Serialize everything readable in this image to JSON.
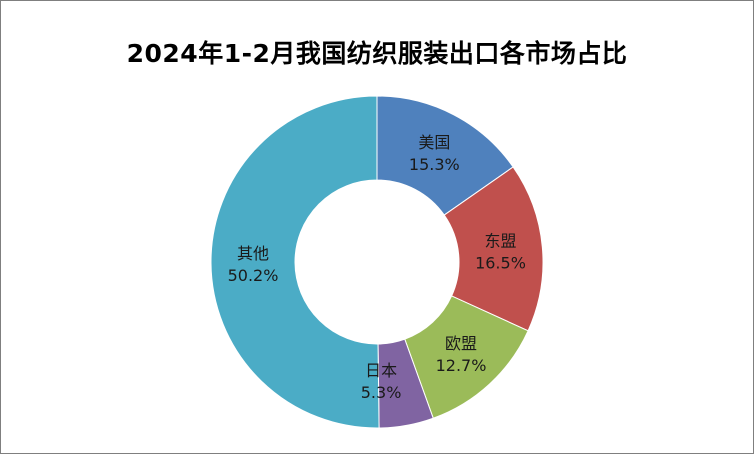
{
  "chart_data": {
    "type": "pie",
    "variant": "donut",
    "title": "2024年1-2月我国纺织服装出口各市场占比",
    "categories": [
      "美国",
      "东盟",
      "欧盟",
      "日本",
      "其他"
    ],
    "values": [
      15.3,
      16.5,
      12.7,
      5.3,
      50.2
    ],
    "value_labels": [
      "15.3%",
      "16.5%",
      "12.7%",
      "5.3%",
      "50.2%"
    ],
    "colors": [
      "#4f81bd",
      "#c0504d",
      "#9bbb59",
      "#8064a2",
      "#4bacc6"
    ],
    "unit": "%",
    "legend": "none",
    "start_angle_deg": 0,
    "direction": "clockwise"
  }
}
